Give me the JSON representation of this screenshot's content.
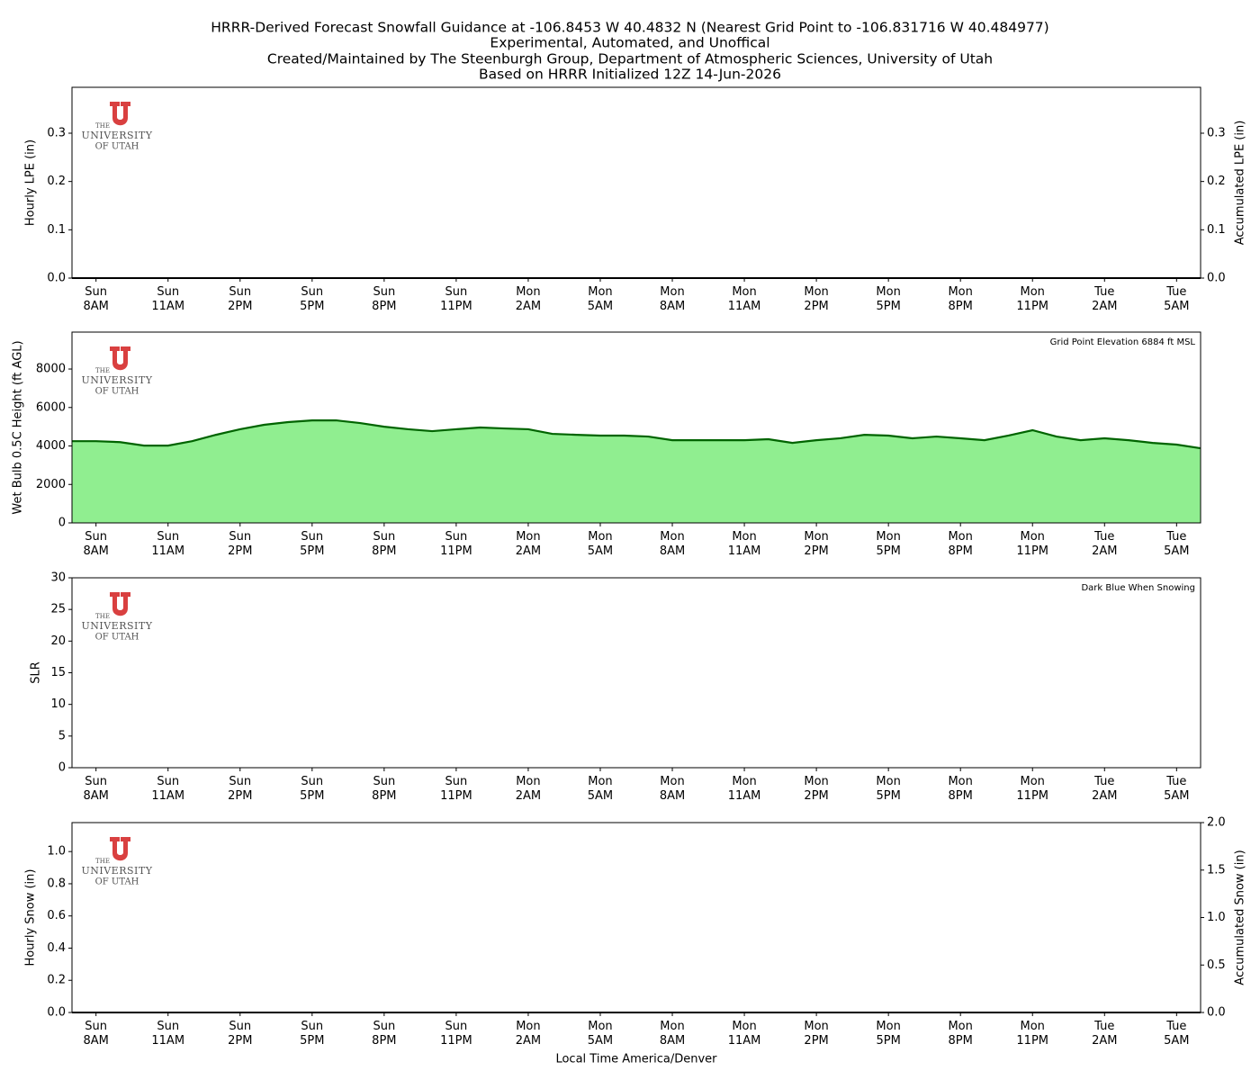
{
  "title_lines": [
    "HRRR-Derived Forecast Snowfall Guidance at -106.8453 W 40.4832 N (Nearest Grid Point to -106.831716 W 40.484977)",
    "Experimental, Automated, and Unoffical",
    "Created/Maintained by The Steenburgh Group, Department of Atmospheric Sciences, University of Utah",
    "Based on HRRR Initialized 12Z 14-Jun-2026"
  ],
  "logo": {
    "lines": [
      "THE",
      "UNIVERSITY",
      "OF UTAH"
    ]
  },
  "chart_data": [
    {
      "type": "bar",
      "ylabel": "Hourly LPE (in)",
      "y2label": "Accumulated LPE (in)",
      "categories": [
        null,
        "Sun\n8AM",
        null,
        null,
        "Sun\n11AM",
        null,
        null,
        "Sun\n2PM",
        null,
        null,
        "Sun\n5PM",
        null,
        null,
        "Sun\n8PM",
        null,
        null,
        "Sun\n11PM",
        null,
        null,
        "Mon\n2AM",
        null,
        null,
        "Mon\n5AM",
        null,
        null,
        "Mon\n8AM",
        null,
        null,
        "Mon\n11AM",
        null,
        null,
        "Mon\n2PM",
        null,
        null,
        "Mon\n5PM",
        null,
        null,
        "Mon\n8PM",
        null,
        null,
        "Mon\n11PM",
        null,
        null,
        "Tue\n2AM",
        null,
        null,
        "Tue\n5AM",
        null
      ],
      "ylim": [
        0,
        0.395
      ],
      "yticks": [
        {
          "value": 0,
          "label": "0.0"
        },
        0.1,
        0.2,
        0.3
      ],
      "y2lim": [
        0,
        0.395
      ],
      "y2ticks": [
        {
          "value": 0,
          "label": "0.0"
        },
        0.1,
        0.2,
        0.3
      ],
      "series": [
        {
          "type": "bar",
          "color": "#228b22",
          "values": [
            0,
            0,
            0,
            0,
            0,
            0,
            0,
            0,
            0,
            0,
            0,
            0,
            0,
            0,
            0,
            0,
            0,
            0,
            0,
            0,
            0,
            0,
            0,
            0,
            0,
            0,
            0,
            0,
            0,
            0,
            0,
            0,
            0,
            0,
            0,
            0,
            0,
            0,
            0,
            0,
            0,
            0,
            0,
            0,
            0,
            0,
            0,
            0
          ]
        },
        {
          "type": "line",
          "axis": "y2",
          "color": "#000000",
          "values": [
            0,
            0,
            0,
            0,
            0,
            0,
            0,
            0,
            0,
            0,
            0,
            0,
            0,
            0,
            0,
            0,
            0,
            0,
            0,
            0,
            0,
            0,
            0,
            0,
            0,
            0,
            0,
            0,
            0,
            0,
            0,
            0,
            0,
            0,
            0,
            0,
            0,
            0,
            0,
            0,
            0,
            0,
            0,
            0,
            0,
            0,
            0,
            0
          ]
        }
      ]
    },
    {
      "type": "area",
      "ylabel": "Wet Bulb 0.5C Height (ft AGL)",
      "annotation": "Grid Point Elevation 6884 ft MSL",
      "categories": [
        null,
        "Sun\n8AM",
        null,
        null,
        "Sun\n11AM",
        null,
        null,
        "Sun\n2PM",
        null,
        null,
        "Sun\n5PM",
        null,
        null,
        "Sun\n8PM",
        null,
        null,
        "Sun\n11PM",
        null,
        null,
        "Mon\n2AM",
        null,
        null,
        "Mon\n5AM",
        null,
        null,
        "Mon\n8AM",
        null,
        null,
        "Mon\n11AM",
        null,
        null,
        "Mon\n2PM",
        null,
        null,
        "Mon\n5PM",
        null,
        null,
        "Mon\n8PM",
        null,
        null,
        "Mon\n11PM",
        null,
        null,
        "Tue\n2AM",
        null,
        null,
        "Tue\n5AM",
        null
      ],
      "ylim": [
        0,
        9920
      ],
      "yticks": [
        0,
        2000,
        4000,
        6000,
        8000
      ],
      "series": [
        {
          "type": "area",
          "color": "#90ee90",
          "line_color": "#006400",
          "values": [
            4250,
            4250,
            4200,
            4020,
            4020,
            4250,
            4580,
            4870,
            5100,
            5240,
            5330,
            5330,
            5190,
            5000,
            4870,
            4770,
            4870,
            4960,
            4910,
            4870,
            4630,
            4580,
            4540,
            4540,
            4490,
            4300,
            4300,
            4300,
            4300,
            4350,
            4160,
            4300,
            4400,
            4580,
            4540,
            4400,
            4490,
            4400,
            4300,
            4540,
            4820,
            4490,
            4300,
            4400,
            4300,
            4160,
            4070,
            3880
          ]
        }
      ]
    },
    {
      "type": "scatter",
      "ylabel": "SLR",
      "annotation": "Dark Blue When Snowing",
      "categories": [
        null,
        "Sun\n8AM",
        null,
        null,
        "Sun\n11AM",
        null,
        null,
        "Sun\n2PM",
        null,
        null,
        "Sun\n5PM",
        null,
        null,
        "Sun\n8PM",
        null,
        null,
        "Sun\n11PM",
        null,
        null,
        "Mon\n2AM",
        null,
        null,
        "Mon\n5AM",
        null,
        null,
        "Mon\n8AM",
        null,
        null,
        "Mon\n11AM",
        null,
        null,
        "Mon\n2PM",
        null,
        null,
        "Mon\n5PM",
        null,
        null,
        "Mon\n8PM",
        null,
        null,
        "Mon\n11PM",
        null,
        null,
        "Tue\n2AM",
        null,
        null,
        "Tue\n5AM",
        null
      ],
      "ylim": [
        0,
        30
      ],
      "yticks": [
        0,
        5,
        10,
        15,
        20,
        25,
        30
      ],
      "series": []
    },
    {
      "type": "bar",
      "ylabel": "Hourly Snow (in)",
      "y2label": "Accumulated Snow (in)",
      "xlabel": "Local Time America/Denver",
      "categories": [
        null,
        "Sun\n8AM",
        null,
        null,
        "Sun\n11AM",
        null,
        null,
        "Sun\n2PM",
        null,
        null,
        "Sun\n5PM",
        null,
        null,
        "Sun\n8PM",
        null,
        null,
        "Sun\n11PM",
        null,
        null,
        "Mon\n2AM",
        null,
        null,
        "Mon\n5AM",
        null,
        null,
        "Mon\n8AM",
        null,
        null,
        "Mon\n11AM",
        null,
        null,
        "Mon\n2PM",
        null,
        null,
        "Mon\n5PM",
        null,
        null,
        "Mon\n8PM",
        null,
        null,
        "Mon\n11PM",
        null,
        null,
        "Tue\n2AM",
        null,
        null,
        "Tue\n5AM",
        null
      ],
      "ylim": [
        0,
        1.18
      ],
      "yticks": [
        {
          "value": 0,
          "label": "0.0"
        },
        0.2,
        0.4,
        0.6,
        0.8,
        {
          "value": 1,
          "label": "1.0"
        }
      ],
      "y2lim": [
        0,
        2
      ],
      "y2ticks": [
        {
          "value": 0,
          "label": "0.0"
        },
        0.5,
        {
          "value": 1,
          "label": "1.0"
        },
        1.5,
        {
          "value": 2,
          "label": "2.0"
        }
      ],
      "series": [
        {
          "type": "bar",
          "color": "#1f3fbf",
          "values": [
            0,
            0,
            0,
            0,
            0,
            0,
            0,
            0,
            0,
            0,
            0,
            0,
            0,
            0,
            0,
            0,
            0,
            0,
            0,
            0,
            0,
            0,
            0,
            0,
            0,
            0,
            0,
            0,
            0,
            0,
            0,
            0,
            0,
            0,
            0,
            0,
            0,
            0,
            0,
            0,
            0,
            0,
            0,
            0,
            0,
            0,
            0,
            0
          ]
        },
        {
          "type": "line",
          "axis": "y2",
          "color": "#000000",
          "values": [
            0,
            0,
            0,
            0,
            0,
            0,
            0,
            0,
            0,
            0,
            0,
            0,
            0,
            0,
            0,
            0,
            0,
            0,
            0,
            0,
            0,
            0,
            0,
            0,
            0,
            0,
            0,
            0,
            0,
            0,
            0,
            0,
            0,
            0,
            0,
            0,
            0,
            0,
            0,
            0,
            0,
            0,
            0,
            0,
            0,
            0,
            0,
            0
          ]
        }
      ]
    }
  ]
}
